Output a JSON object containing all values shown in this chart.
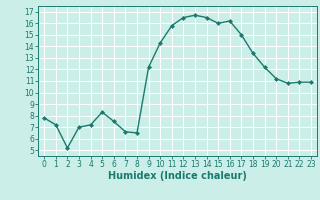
{
  "x": [
    0,
    1,
    2,
    3,
    4,
    5,
    6,
    7,
    8,
    9,
    10,
    11,
    12,
    13,
    14,
    15,
    16,
    17,
    18,
    19,
    20,
    21,
    22,
    23
  ],
  "y": [
    7.8,
    7.2,
    5.2,
    7.0,
    7.2,
    8.3,
    7.5,
    6.6,
    6.5,
    12.2,
    14.3,
    15.8,
    16.5,
    16.7,
    16.5,
    16.0,
    16.2,
    15.0,
    13.4,
    12.2,
    11.2,
    10.8,
    10.9,
    10.9
  ],
  "line_color": "#1a7a6e",
  "marker": "D",
  "markersize": 2.0,
  "linewidth": 1.0,
  "bg_color": "#cceee8",
  "grid_color": "#ffffff",
  "xlabel": "Humidex (Indice chaleur)",
  "xlim": [
    -0.5,
    23.5
  ],
  "ylim": [
    4.5,
    17.5
  ],
  "yticks": [
    5,
    6,
    7,
    8,
    9,
    10,
    11,
    12,
    13,
    14,
    15,
    16,
    17
  ],
  "xticks": [
    0,
    1,
    2,
    3,
    4,
    5,
    6,
    7,
    8,
    9,
    10,
    11,
    12,
    13,
    14,
    15,
    16,
    17,
    18,
    19,
    20,
    21,
    22,
    23
  ],
  "tick_fontsize": 5.5,
  "xlabel_fontsize": 7.0
}
